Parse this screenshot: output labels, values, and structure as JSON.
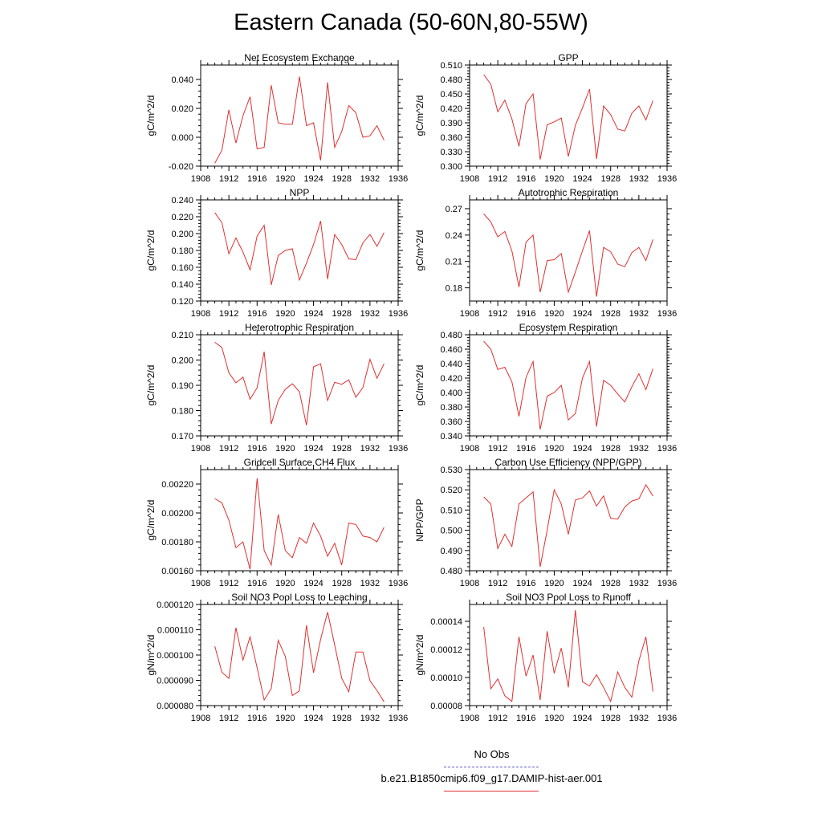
{
  "title": "Eastern Canada (50-60N,80-55W)",
  "legend": {
    "obs_label": "No Obs",
    "obs_color": "#5a5ad6",
    "model_label": "b.e21.B1850cmip6.f09_g17.DAMIP-hist-aer.001",
    "model_color": "#e03030"
  },
  "chart_data": [
    {
      "type": "line",
      "title": "Net Ecosystem Exchange",
      "ylabel": "gC/m^2/d",
      "xlim": [
        1908,
        1936
      ],
      "xticks": [
        1908,
        1912,
        1916,
        1920,
        1924,
        1928,
        1932,
        1936
      ],
      "ylim": [
        -0.02,
        0.05
      ],
      "yticks": [
        -0.02,
        0.0,
        0.02,
        0.04
      ],
      "ytick_labels": [
        "-0.020",
        "0.000",
        "0.020",
        "0.040"
      ],
      "x": [
        1910,
        1911,
        1912,
        1913,
        1914,
        1915,
        1916,
        1917,
        1918,
        1919,
        1920,
        1921,
        1922,
        1923,
        1924,
        1925,
        1926,
        1927,
        1928,
        1929,
        1930,
        1931,
        1932,
        1933,
        1934
      ],
      "series": [
        {
          "values": [
            -0.018,
            -0.009,
            0.019,
            -0.004,
            0.015,
            0.028,
            -0.008,
            -0.007,
            0.036,
            0.01,
            0.009,
            0.009,
            0.042,
            0.008,
            0.01,
            -0.016,
            0.038,
            -0.007,
            0.004,
            0.022,
            0.017,
            0.0,
            0.001,
            0.008,
            -0.002
          ]
        }
      ]
    },
    {
      "type": "line",
      "title": "GPP",
      "ylabel": "gC/m^2/d",
      "xlim": [
        1908,
        1936
      ],
      "xticks": [
        1908,
        1912,
        1916,
        1920,
        1924,
        1928,
        1932,
        1936
      ],
      "ylim": [
        0.3,
        0.51
      ],
      "yticks": [
        0.3,
        0.33,
        0.36,
        0.39,
        0.42,
        0.45,
        0.48,
        0.51
      ],
      "ytick_labels": [
        "0.300",
        "0.330",
        "0.360",
        "0.390",
        "0.420",
        "0.450",
        "0.480",
        "0.510"
      ],
      "x": [
        1910,
        1911,
        1912,
        1913,
        1914,
        1915,
        1916,
        1917,
        1918,
        1919,
        1920,
        1921,
        1922,
        1923,
        1924,
        1925,
        1926,
        1927,
        1928,
        1929,
        1930,
        1931,
        1932,
        1933,
        1934
      ],
      "series": [
        {
          "values": [
            0.49,
            0.47,
            0.413,
            0.437,
            0.398,
            0.341,
            0.43,
            0.45,
            0.314,
            0.386,
            0.392,
            0.4,
            0.32,
            0.385,
            0.421,
            0.46,
            0.315,
            0.425,
            0.407,
            0.377,
            0.373,
            0.41,
            0.425,
            0.396,
            0.436
          ]
        }
      ]
    },
    {
      "type": "line",
      "title": "NPP",
      "ylabel": "gC/m^2/d",
      "xlim": [
        1908,
        1936
      ],
      "xticks": [
        1908,
        1912,
        1916,
        1920,
        1924,
        1928,
        1932,
        1936
      ],
      "ylim": [
        0.12,
        0.24
      ],
      "yticks": [
        0.12,
        0.14,
        0.16,
        0.18,
        0.2,
        0.22,
        0.24
      ],
      "ytick_labels": [
        "0.120",
        "0.140",
        "0.160",
        "0.180",
        "0.200",
        "0.220",
        "0.240"
      ],
      "x": [
        1910,
        1911,
        1912,
        1913,
        1914,
        1915,
        1916,
        1917,
        1918,
        1919,
        1920,
        1921,
        1922,
        1923,
        1924,
        1925,
        1926,
        1927,
        1928,
        1929,
        1930,
        1931,
        1932,
        1933,
        1934
      ],
      "series": [
        {
          "values": [
            0.225,
            0.213,
            0.176,
            0.195,
            0.178,
            0.157,
            0.197,
            0.21,
            0.139,
            0.174,
            0.18,
            0.182,
            0.145,
            0.165,
            0.187,
            0.215,
            0.146,
            0.199,
            0.187,
            0.17,
            0.169,
            0.189,
            0.199,
            0.185,
            0.201
          ]
        }
      ]
    },
    {
      "type": "line",
      "title": "Autotrophic Respiration",
      "ylabel": "gC/m^2/d",
      "xlim": [
        1908,
        1936
      ],
      "xticks": [
        1908,
        1912,
        1916,
        1920,
        1924,
        1928,
        1932,
        1936
      ],
      "ylim": [
        0.165,
        0.28
      ],
      "yticks": [
        0.18,
        0.21,
        0.24,
        0.27
      ],
      "ytick_labels": [
        "0.18",
        "0.21",
        "0.24",
        "0.27"
      ],
      "x": [
        1910,
        1911,
        1912,
        1913,
        1914,
        1915,
        1916,
        1917,
        1918,
        1919,
        1920,
        1921,
        1922,
        1923,
        1924,
        1925,
        1926,
        1927,
        1928,
        1929,
        1930,
        1931,
        1932,
        1933,
        1934
      ],
      "series": [
        {
          "values": [
            0.264,
            0.255,
            0.238,
            0.244,
            0.222,
            0.181,
            0.232,
            0.24,
            0.175,
            0.211,
            0.212,
            0.219,
            0.175,
            0.198,
            0.222,
            0.245,
            0.17,
            0.226,
            0.221,
            0.207,
            0.204,
            0.22,
            0.226,
            0.211,
            0.235
          ]
        }
      ]
    },
    {
      "type": "line",
      "title": "Heterotrophic Respiration",
      "ylabel": "gC/m^2/d",
      "xlim": [
        1908,
        1936
      ],
      "xticks": [
        1908,
        1912,
        1916,
        1920,
        1924,
        1928,
        1932,
        1936
      ],
      "ylim": [
        0.17,
        0.21
      ],
      "yticks": [
        0.17,
        0.18,
        0.19,
        0.2,
        0.21
      ],
      "ytick_labels": [
        "0.170",
        "0.180",
        "0.190",
        "0.200",
        "0.210"
      ],
      "x": [
        1910,
        1911,
        1912,
        1913,
        1914,
        1915,
        1916,
        1917,
        1918,
        1919,
        1920,
        1921,
        1922,
        1923,
        1924,
        1925,
        1926,
        1927,
        1928,
        1929,
        1930,
        1931,
        1932,
        1933,
        1934
      ],
      "series": [
        {
          "values": [
            0.207,
            0.205,
            0.195,
            0.191,
            0.1932,
            0.1845,
            0.189,
            0.2033,
            0.1747,
            0.184,
            0.1884,
            0.1906,
            0.1875,
            0.1742,
            0.1973,
            0.1985,
            0.184,
            0.1912,
            0.1904,
            0.1922,
            0.1853,
            0.1891,
            0.2003,
            0.1928,
            0.1985
          ]
        }
      ]
    },
    {
      "type": "line",
      "title": "Ecosystem Respiration",
      "ylabel": "gC/m^2/d",
      "xlim": [
        1908,
        1936
      ],
      "xticks": [
        1908,
        1912,
        1916,
        1920,
        1924,
        1928,
        1932,
        1936
      ],
      "ylim": [
        0.34,
        0.48
      ],
      "yticks": [
        0.34,
        0.36,
        0.38,
        0.4,
        0.42,
        0.44,
        0.46,
        0.48
      ],
      "ytick_labels": [
        "0.340",
        "0.360",
        "0.380",
        "0.400",
        "0.420",
        "0.440",
        "0.460",
        "0.480"
      ],
      "x": [
        1910,
        1911,
        1912,
        1913,
        1914,
        1915,
        1916,
        1917,
        1918,
        1919,
        1920,
        1921,
        1922,
        1923,
        1924,
        1925,
        1926,
        1927,
        1928,
        1929,
        1930,
        1931,
        1932,
        1933,
        1934
      ],
      "series": [
        {
          "values": [
            0.471,
            0.46,
            0.432,
            0.435,
            0.415,
            0.367,
            0.421,
            0.443,
            0.349,
            0.395,
            0.4,
            0.41,
            0.362,
            0.371,
            0.42,
            0.443,
            0.353,
            0.417,
            0.41,
            0.398,
            0.387,
            0.408,
            0.426,
            0.404,
            0.433
          ]
        }
      ]
    },
    {
      "type": "line",
      "title": "Gridcell Surface CH4 Flux",
      "ylabel": "gC/m^2/d",
      "xlim": [
        1908,
        1936
      ],
      "xticks": [
        1908,
        1912,
        1916,
        1920,
        1924,
        1928,
        1932,
        1936
      ],
      "ylim": [
        0.0016,
        0.0023
      ],
      "yticks": [
        0.0016,
        0.0018,
        0.002,
        0.0022
      ],
      "ytick_labels": [
        "0.00160",
        "0.00180",
        "0.00200",
        "0.00220"
      ],
      "x": [
        1910,
        1911,
        1912,
        1913,
        1914,
        1915,
        1916,
        1917,
        1918,
        1919,
        1920,
        1921,
        1922,
        1923,
        1924,
        1925,
        1926,
        1927,
        1928,
        1929,
        1930,
        1931,
        1932,
        1933,
        1934
      ],
      "series": [
        {
          "values": [
            0.0021,
            0.00207,
            0.00195,
            0.00176,
            0.0018,
            0.00161,
            0.00224,
            0.00174,
            0.00164,
            0.00199,
            0.00174,
            0.00169,
            0.00183,
            0.00179,
            0.00193,
            0.00184,
            0.0017,
            0.00179,
            0.00164,
            0.00193,
            0.00192,
            0.00184,
            0.00183,
            0.0018,
            0.0019
          ]
        }
      ]
    },
    {
      "type": "line",
      "title": "Carbon Use Efficiency (NPP/GPP)",
      "ylabel": "NPP/GPP",
      "xlim": [
        1908,
        1936
      ],
      "xticks": [
        1908,
        1912,
        1916,
        1920,
        1924,
        1928,
        1932,
        1936
      ],
      "ylim": [
        0.48,
        0.53
      ],
      "yticks": [
        0.48,
        0.49,
        0.5,
        0.51,
        0.52,
        0.53
      ],
      "ytick_labels": [
        "0.480",
        "0.490",
        "0.500",
        "0.510",
        "0.520",
        "0.530"
      ],
      "x": [
        1910,
        1911,
        1912,
        1913,
        1914,
        1915,
        1916,
        1917,
        1918,
        1919,
        1920,
        1921,
        1922,
        1923,
        1924,
        1925,
        1926,
        1927,
        1928,
        1929,
        1930,
        1931,
        1932,
        1933,
        1934
      ],
      "series": [
        {
          "values": [
            0.5165,
            0.513,
            0.491,
            0.498,
            0.492,
            0.513,
            0.516,
            0.519,
            0.482,
            0.5,
            0.52,
            0.513,
            0.498,
            0.515,
            0.516,
            0.5195,
            0.512,
            0.517,
            0.506,
            0.5055,
            0.5115,
            0.5145,
            0.5155,
            0.5225,
            0.517
          ]
        }
      ]
    },
    {
      "type": "line",
      "title": "Soil NO3 Pool Loss to Leaching",
      "ylabel": "gN/m^2/d",
      "xlim": [
        1908,
        1936
      ],
      "xticks": [
        1908,
        1912,
        1916,
        1920,
        1924,
        1928,
        1932,
        1936
      ],
      "ylim": [
        8e-05,
        0.00012
      ],
      "yticks": [
        8e-05,
        9e-05,
        0.0001,
        0.00011,
        0.00012
      ],
      "ytick_labels": [
        "0.000080",
        "0.000090",
        "0.000100",
        "0.000110",
        "0.000120"
      ],
      "x": [
        1910,
        1911,
        1912,
        1913,
        1914,
        1915,
        1916,
        1917,
        1918,
        1919,
        1920,
        1921,
        1922,
        1923,
        1924,
        1925,
        1926,
        1927,
        1928,
        1929,
        1930,
        1931,
        1932,
        1933,
        1934
      ],
      "series": [
        {
          "values": [
            0.0001035,
            9.32e-05,
            9.08e-05,
            0.0001108,
            9.8e-05,
            0.0001072,
            9.5e-05,
            8.22e-05,
            8.68e-05,
            0.0001058,
            9.95e-05,
            8.4e-05,
            8.58e-05,
            0.0001118,
            9.3e-05,
            0.0001062,
            0.000117,
            0.000104,
            9.08e-05,
            8.55e-05,
            0.0001012,
            0.0001012,
            8.98e-05,
            8.6e-05,
            8.15e-05
          ]
        }
      ]
    },
    {
      "type": "line",
      "title": "Soil NO3 Pool Loss to Runoff",
      "ylabel": "gN/m^2/d",
      "xlim": [
        1908,
        1936
      ],
      "xticks": [
        1908,
        1912,
        1916,
        1920,
        1924,
        1928,
        1932,
        1936
      ],
      "ylim": [
        8e-05,
        0.000152
      ],
      "yticks": [
        8e-05,
        0.0001,
        0.00012,
        0.00014
      ],
      "ytick_labels": [
        "0.00008",
        "0.00010",
        "0.00012",
        "0.00014"
      ],
      "x": [
        1910,
        1911,
        1912,
        1913,
        1914,
        1915,
        1916,
        1917,
        1918,
        1919,
        1920,
        1921,
        1922,
        1923,
        1924,
        1925,
        1926,
        1927,
        1928,
        1929,
        1930,
        1931,
        1932,
        1933,
        1934
      ],
      "series": [
        {
          "values": [
            0.000136,
            9.2e-05,
            9.9e-05,
            8.7e-05,
            8.3e-05,
            0.000129,
            0.000101,
            0.000116,
            8.4e-05,
            0.000133,
            0.000103,
            0.000121,
            9.3e-05,
            0.000148,
            9.7e-05,
            9.4e-05,
            0.000102,
            9.3e-05,
            8.3e-05,
            0.000104,
            9.3e-05,
            8.6e-05,
            0.000112,
            0.000129,
            9e-05
          ]
        }
      ]
    }
  ]
}
